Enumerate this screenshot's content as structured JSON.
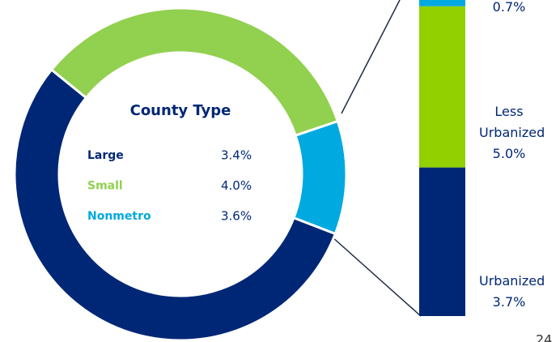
{
  "chart_data": [
    {
      "type": "donut",
      "categories": [
        "Large",
        "Small",
        "Nonmetro"
      ],
      "values": [
        55,
        34,
        11
      ],
      "colors": [
        "#002776",
        "#92d050",
        "#00a9e0"
      ]
    },
    {
      "type": "stacked_bar",
      "categories": [
        null,
        "Less Urbanized",
        "Urbanized"
      ],
      "values": [
        2,
        51,
        47
      ],
      "colors": [
        "#00a9e0",
        "#92d000",
        "#002776"
      ],
      "rate_labels": [
        "0.7%",
        "5.0%",
        "3.7%"
      ]
    }
  ],
  "county_table": {
    "title": "County Type",
    "rows": [
      [
        "Large",
        "3.4%"
      ],
      [
        "Small",
        "4.0%"
      ],
      [
        "Nonmetro",
        "3.6%"
      ]
    ]
  },
  "page_number": "24"
}
